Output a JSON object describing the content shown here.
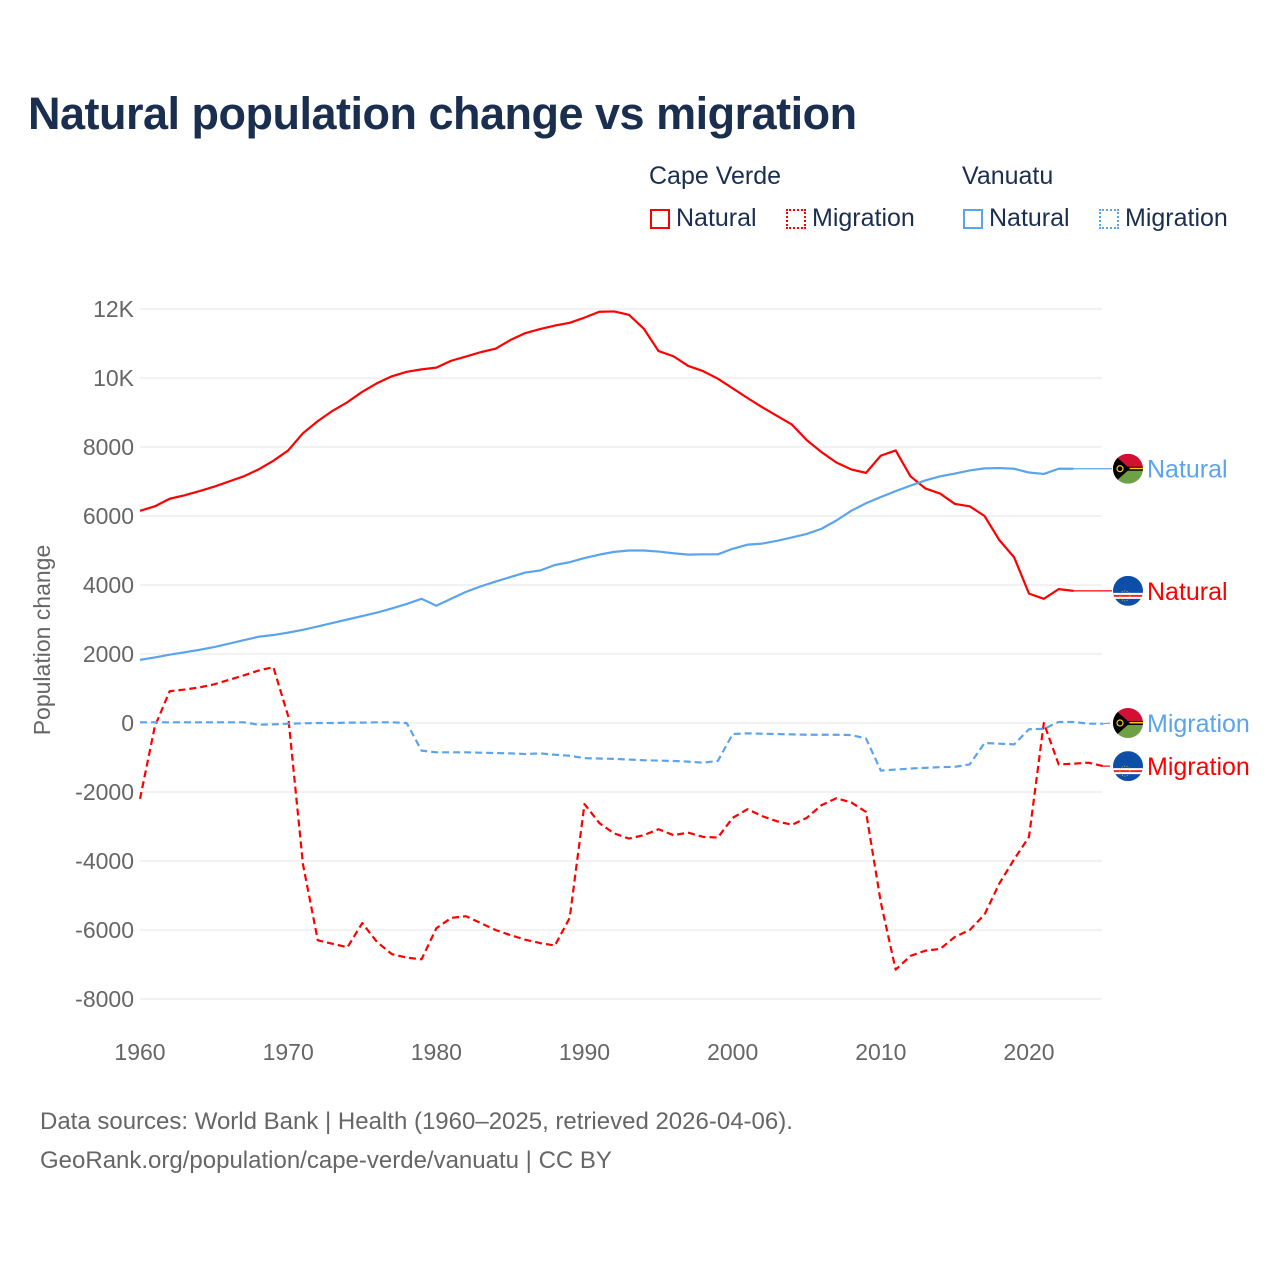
{
  "title": "Natural population change vs migration",
  "legend": {
    "groups": [
      {
        "name": "Cape Verde",
        "items": [
          "Natural",
          "Migration"
        ],
        "color": "#ff0000"
      },
      {
        "name": "Vanuatu",
        "items": [
          "Natural",
          "Migration"
        ],
        "color": "#5ba4ec"
      }
    ]
  },
  "footer": {
    "line1": "Data sources: World Bank | Health (1960–2025, retrieved 2026-04-06).",
    "line2": "GeoRank.org/population/cape-verde/vanuatu | CC BY"
  },
  "chart_data": {
    "type": "line",
    "title": "Natural population change vs migration",
    "xlabel": "",
    "ylabel": "Population change",
    "xlim": [
      1960,
      2025
    ],
    "ylim": [
      -8000,
      12000
    ],
    "x_ticks": [
      "1960",
      "1970",
      "1980",
      "1990",
      "2000",
      "2010",
      "2020"
    ],
    "y_ticks": [
      {
        "v": 12000,
        "label": "12K"
      },
      {
        "v": 10000,
        "label": "10K"
      },
      {
        "v": 8000,
        "label": "8000"
      },
      {
        "v": 6000,
        "label": "6000"
      },
      {
        "v": 4000,
        "label": "4000"
      },
      {
        "v": 2000,
        "label": "2000"
      },
      {
        "v": 0,
        "label": "0"
      },
      {
        "v": -2000,
        "label": "-2000"
      },
      {
        "v": -4000,
        "label": "-4000"
      },
      {
        "v": -6000,
        "label": "-6000"
      },
      {
        "v": -8000,
        "label": "-8000"
      }
    ],
    "grid": true,
    "legend_position": "top-right",
    "series": [
      {
        "name": "Cape Verde Natural",
        "label": "Natural",
        "country": "cape-verde",
        "color": "#ff0000",
        "dashed": false,
        "start": 1960,
        "values": [
          6150,
          6280,
          6500,
          6600,
          6720,
          6850,
          7000,
          7150,
          7350,
          7600,
          7900,
          8400,
          8750,
          9050,
          9300,
          9600,
          9850,
          10050,
          10180,
          10250,
          10300,
          10500,
          10620,
          10750,
          10850,
          11100,
          11300,
          11420,
          11520,
          11600,
          11750,
          11920,
          11930,
          11830,
          11430,
          10780,
          10630,
          10350,
          10200,
          9980,
          9700,
          9420,
          9150,
          8900,
          8650,
          8200,
          7850,
          7550,
          7350,
          7250,
          7750,
          7900,
          7150,
          6800,
          6650,
          6350,
          6280,
          6000,
          5300,
          4800,
          3750,
          3600,
          3880,
          3830
        ]
      },
      {
        "name": "Vanuatu Natural",
        "label": "Natural",
        "country": "vanuatu",
        "color": "#5ba4ec",
        "dashed": false,
        "start": 1960,
        "values": [
          1830,
          1900,
          1980,
          2050,
          2120,
          2200,
          2300,
          2400,
          2500,
          2550,
          2620,
          2700,
          2800,
          2900,
          3000,
          3100,
          3200,
          3320,
          3450,
          3600,
          3400,
          3600,
          3800,
          3960,
          4100,
          4230,
          4360,
          4420,
          4580,
          4660,
          4780,
          4880,
          4960,
          5000,
          5000,
          4970,
          4920,
          4880,
          4890,
          4890,
          5050,
          5170,
          5200,
          5280,
          5380,
          5480,
          5630,
          5870,
          6150,
          6370,
          6550,
          6720,
          6880,
          7030,
          7150,
          7230,
          7320,
          7380,
          7390,
          7370,
          7260,
          7220,
          7370,
          7370
        ]
      },
      {
        "name": "Cape Verde Migration",
        "label": "Migration",
        "country": "cape-verde",
        "color": "#ff0000",
        "dashed": true,
        "start": 1960,
        "values": [
          -2200,
          -100,
          920,
          970,
          1030,
          1120,
          1250,
          1380,
          1520,
          1620,
          200,
          -4100,
          -6300,
          -6400,
          -6500,
          -5800,
          -6350,
          -6700,
          -6800,
          -6850,
          -5950,
          -5650,
          -5600,
          -5800,
          -6000,
          -6150,
          -6280,
          -6380,
          -6450,
          -5650,
          -2350,
          -2900,
          -3200,
          -3350,
          -3250,
          -3080,
          -3250,
          -3180,
          -3300,
          -3320,
          -2750,
          -2500,
          -2700,
          -2850,
          -2950,
          -2750,
          -2380,
          -2180,
          -2300,
          -2580,
          -5200,
          -7150,
          -6750,
          -6600,
          -6550,
          -6200,
          -6000,
          -5550,
          -4650,
          -3950,
          -3300,
          0,
          -1200,
          -1180,
          -1150,
          -1250
        ]
      },
      {
        "name": "Vanuatu Migration",
        "label": "Migration",
        "country": "vanuatu",
        "color": "#5ba4ec",
        "dashed": true,
        "start": 1960,
        "values": [
          20,
          20,
          20,
          20,
          20,
          20,
          20,
          20,
          -50,
          -40,
          -20,
          -10,
          0,
          0,
          10,
          10,
          20,
          20,
          0,
          -800,
          -850,
          -850,
          -850,
          -860,
          -870,
          -880,
          -900,
          -880,
          -920,
          -950,
          -1020,
          -1030,
          -1040,
          -1060,
          -1080,
          -1090,
          -1100,
          -1120,
          -1150,
          -1100,
          -320,
          -300,
          -310,
          -320,
          -330,
          -340,
          -340,
          -340,
          -350,
          -450,
          -1380,
          -1350,
          -1320,
          -1300,
          -1280,
          -1270,
          -1200,
          -580,
          -600,
          -620,
          -180,
          -170,
          30,
          30,
          -20,
          -20
        ]
      }
    ]
  }
}
